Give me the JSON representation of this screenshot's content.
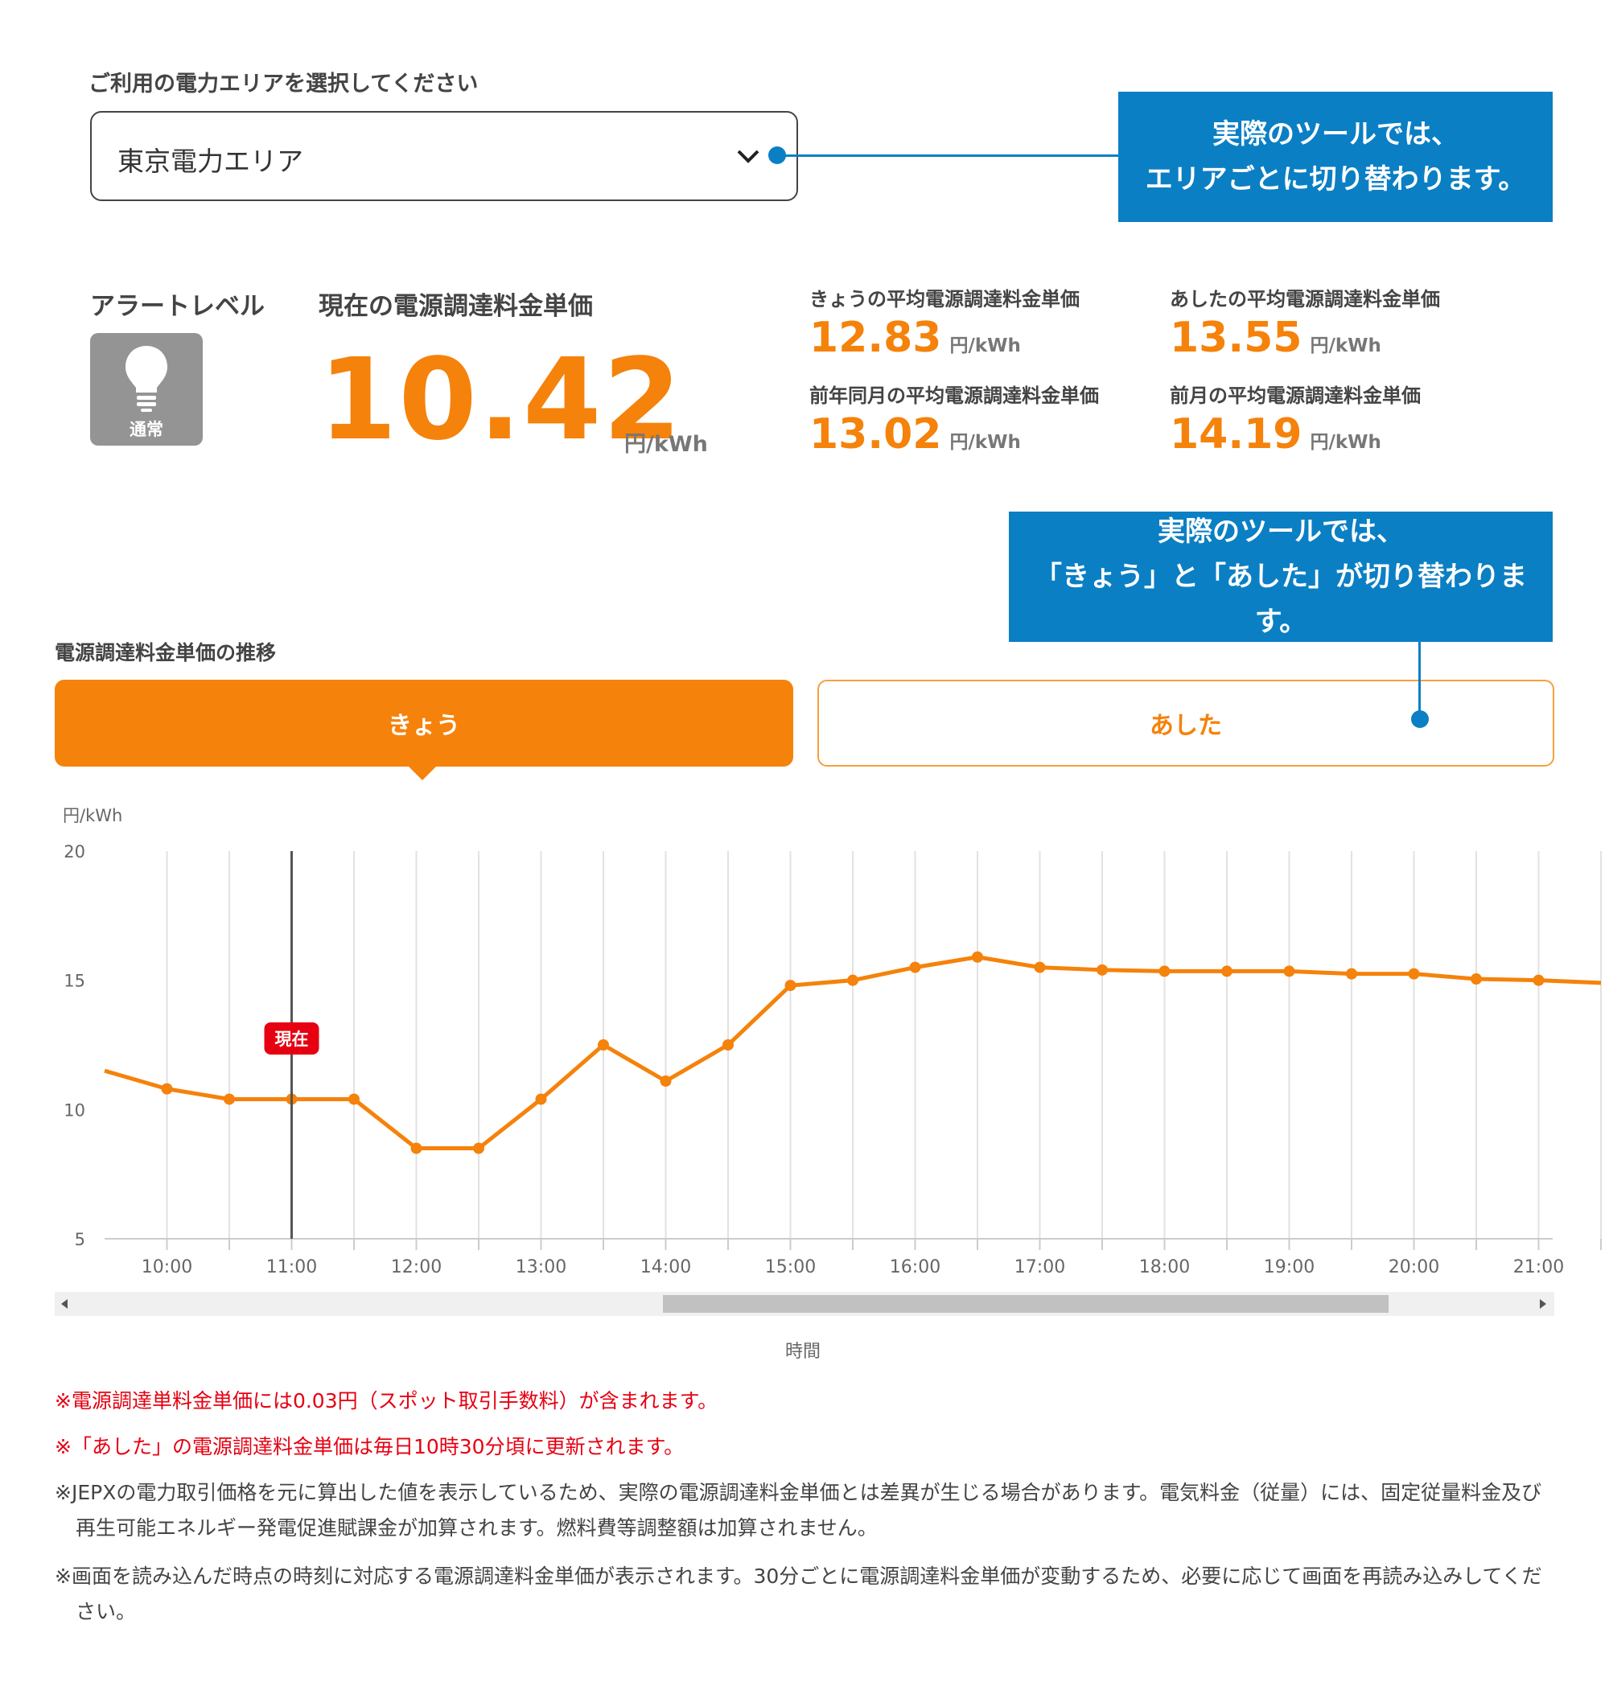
{
  "area": {
    "label": "ご利用の電力エリアを選択してください",
    "selected": "東京電力エリア"
  },
  "callouts": {
    "area": [
      "実際のツールでは、",
      "エリアごとに切り替わります。"
    ],
    "tabs": [
      "実際のツールでは、",
      "「きょう」と「あした」が切り替わります。"
    ]
  },
  "alert": {
    "title": "アラートレベル",
    "level": "通常",
    "icon": "lightbulb-icon"
  },
  "current": {
    "title": "現在の電源調達料金単価",
    "value": "10.42",
    "unit": "円/kWh"
  },
  "stats": [
    {
      "title": "きょうの平均電源調達料金単価",
      "value": "12.83",
      "unit": "円/kWh"
    },
    {
      "title": "あしたの平均電源調達料金単価",
      "value": "13.55",
      "unit": "円/kWh"
    },
    {
      "title": "前年同月の平均電源調達料金単価",
      "value": "13.02",
      "unit": "円/kWh"
    },
    {
      "title": "前月の平均電源調達料金単価",
      "value": "14.19",
      "unit": "円/kWh"
    }
  ],
  "trend": {
    "title": "電源調達料金単価の推移",
    "tabs": [
      "きょう",
      "あした"
    ],
    "active_tab": "きょう"
  },
  "chart_data": {
    "type": "line",
    "ylabel": "円/kWh",
    "xlabel": "時間",
    "ylim": [
      5,
      20
    ],
    "yticks": [
      "5",
      "10",
      "15",
      "20"
    ],
    "xticks": [
      "10:00",
      "11:00",
      "12:00",
      "13:00",
      "14:00",
      "15:00",
      "16:00",
      "17:00",
      "18:00",
      "19:00",
      "20:00",
      "21:00"
    ],
    "x": [
      "9:30",
      "10:00",
      "10:30",
      "11:00",
      "11:30",
      "12:00",
      "12:30",
      "13:00",
      "13:30",
      "14:00",
      "14:30",
      "15:00",
      "15:30",
      "16:00",
      "16:30",
      "17:00",
      "17:30",
      "18:00",
      "18:30",
      "19:00",
      "19:30",
      "20:00",
      "20:30",
      "21:00",
      "21:30"
    ],
    "values": [
      11.5,
      10.8,
      10.4,
      10.4,
      10.4,
      8.5,
      8.5,
      10.4,
      12.5,
      11.1,
      12.5,
      14.8,
      15.0,
      15.5,
      15.9,
      15.5,
      15.4,
      15.35,
      15.35,
      15.35,
      15.25,
      15.25,
      15.05,
      15.0,
      14.9
    ],
    "current_time": "11:00",
    "current_label": "現在",
    "line_color": "#f5820a",
    "grid": true
  },
  "notes": [
    {
      "text": "※電源調達単料金単価には0.03円（スポット取引手数料）が含まれます。",
      "color": "red"
    },
    {
      "text": "※「あした」の電源調達料金単価は毎日10時30分頃に更新されます。",
      "color": "red"
    },
    {
      "text": "※JEPXの電力取引価格を元に算出した値を表示しているため、実際の電源調達料金単価とは差異が生じる場合があります。電気料金（従量）には、固定従量料金及び再生可能エネルギー発電促進賦課金が加算されます。燃料費等調整額は加算されません。",
      "color": "gray"
    },
    {
      "text": "※画面を読み込んだ時点の時刻に対応する電源調達料金単価が表示されます。30分ごとに電源調達料金単価が変動するため、必要に応じて画面を再読み込みしてください。",
      "color": "gray"
    }
  ],
  "colors": {
    "accent": "#f5820a",
    "callout": "#0b7fc4",
    "alert_gray": "#949494",
    "note_red": "#e60012",
    "current_badge": "#e60012"
  }
}
